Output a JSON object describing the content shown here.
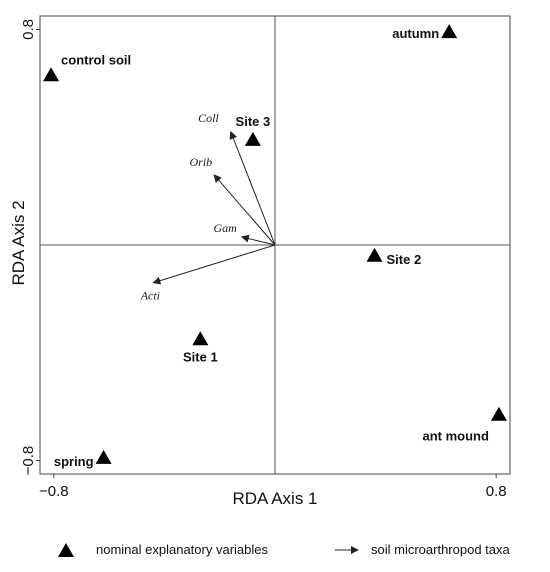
{
  "chart_data": {
    "type": "scatter",
    "xlabel": "RDA Axis 1",
    "ylabel": "RDA Axis 2",
    "xlim": [
      -0.85,
      0.85
    ],
    "ylim": [
      -0.85,
      0.85
    ],
    "x_ticks": [
      {
        "value": -0.8,
        "label": "−0.8"
      },
      {
        "value": 0.8,
        "label": "0.8"
      }
    ],
    "y_ticks": [
      {
        "value": -0.8,
        "label": "−0.8"
      },
      {
        "value": 0.8,
        "label": "0.8"
      }
    ],
    "zero_lines": true,
    "points": [
      {
        "name": "control soil",
        "x": -0.81,
        "y": 0.63
      },
      {
        "name": "autumn",
        "x": 0.63,
        "y": 0.79
      },
      {
        "name": "Site 3",
        "x": -0.08,
        "y": 0.39
      },
      {
        "name": "Site 2",
        "x": 0.36,
        "y": -0.04
      },
      {
        "name": "Site 1",
        "x": -0.27,
        "y": -0.35
      },
      {
        "name": "ant mound",
        "x": 0.81,
        "y": -0.63
      },
      {
        "name": "spring",
        "x": -0.62,
        "y": -0.79
      }
    ],
    "arrows": [
      {
        "name": "Coll",
        "x": -0.16,
        "y": 0.42
      },
      {
        "name": "Orib",
        "x": -0.22,
        "y": 0.26
      },
      {
        "name": "Gam",
        "x": -0.12,
        "y": 0.03
      },
      {
        "name": "Acti",
        "x": -0.44,
        "y": -0.14
      }
    ]
  },
  "legend": {
    "points_label": "nominal explanatory variables",
    "arrows_label": "soil microarthropod taxa"
  }
}
